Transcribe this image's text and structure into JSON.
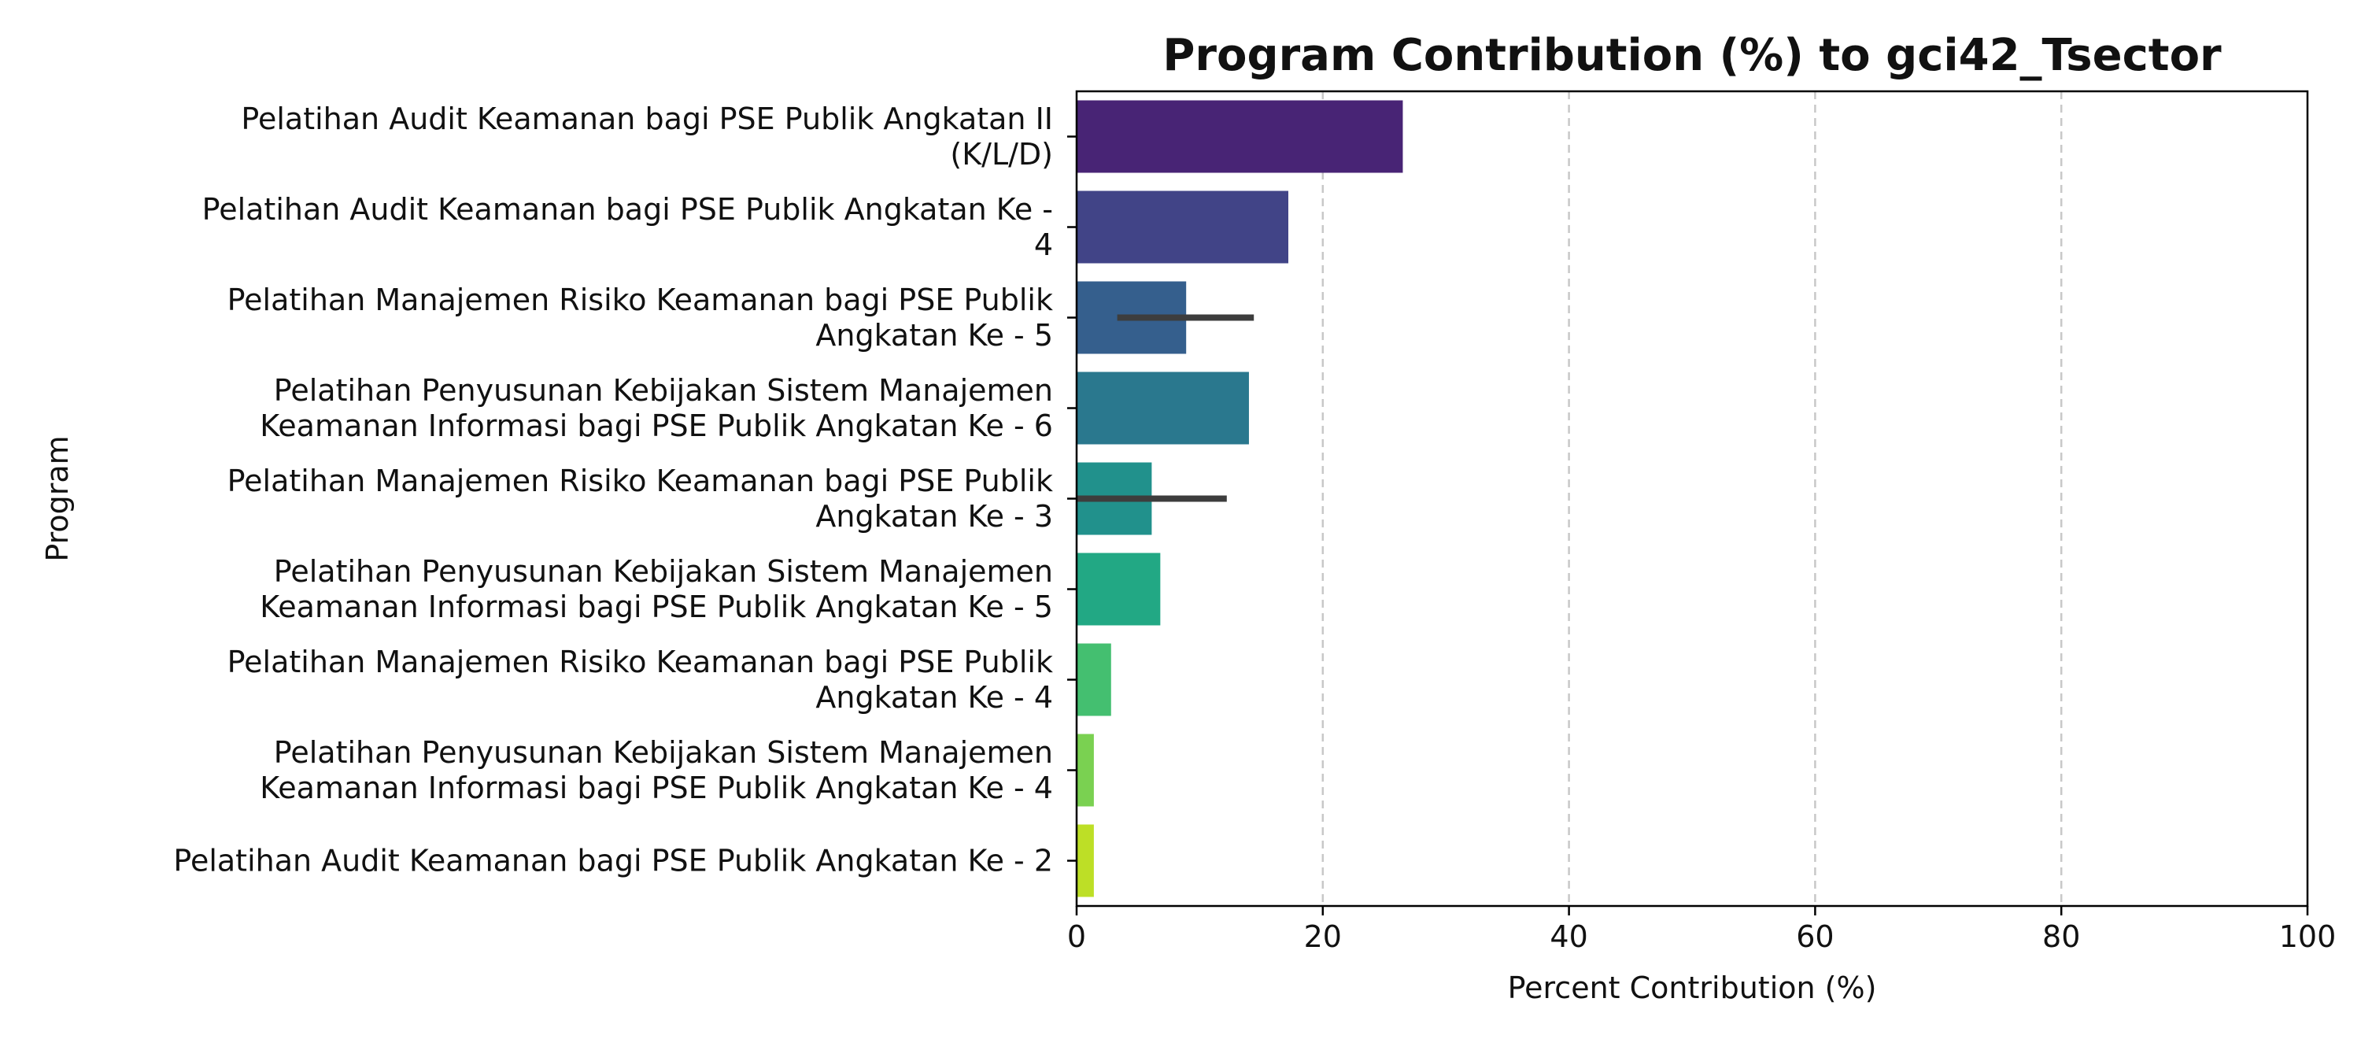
{
  "chart_data": {
    "type": "bar",
    "orientation": "horizontal",
    "title": "Program Contribution (%) to gci42_Tsector",
    "xlabel": "Percent Contribution (%)",
    "ylabel": "Program",
    "xlim": [
      0,
      100
    ],
    "xticks": [
      "0",
      "20",
      "40",
      "60",
      "80",
      "100"
    ],
    "grid": "x-axis dashed",
    "categories": [
      [
        "Pelatihan Audit Keamanan bagi PSE Publik Angkatan II",
        "(K/L/D)"
      ],
      [
        "Pelatihan Audit Keamanan bagi PSE Publik Angkatan Ke -",
        "4"
      ],
      [
        "Pelatihan Manajemen Risiko Keamanan bagi PSE Publik",
        "Angkatan Ke - 5"
      ],
      [
        "Pelatihan Penyusunan Kebijakan Sistem Manajemen",
        "Keamanan Informasi bagi PSE Publik Angkatan Ke - 6"
      ],
      [
        "Pelatihan Manajemen Risiko Keamanan bagi PSE Publik",
        "Angkatan Ke - 3"
      ],
      [
        "Pelatihan Penyusunan Kebijakan Sistem Manajemen",
        "Keamanan Informasi bagi PSE Publik Angkatan Ke - 5"
      ],
      [
        "Pelatihan Manajemen Risiko Keamanan bagi PSE Publik",
        "Angkatan Ke - 4"
      ],
      [
        "Pelatihan Penyusunan Kebijakan Sistem Manajemen",
        "Keamanan Informasi bagi PSE Publik Angkatan Ke - 4"
      ],
      [
        "Pelatihan Audit Keamanan bagi PSE Publik Angkatan Ke - 2"
      ]
    ],
    "values": [
      26.5,
      17.2,
      8.9,
      14.0,
      6.1,
      6.8,
      2.8,
      1.4,
      1.4
    ],
    "error_bars": [
      null,
      null,
      [
        3.3,
        14.4
      ],
      null,
      [
        0.0,
        12.2
      ],
      null,
      null,
      null,
      null
    ],
    "colors": [
      "#482475",
      "#414487",
      "#355f8d",
      "#2a788e",
      "#21918c",
      "#22a884",
      "#44bf70",
      "#7ad151",
      "#bddf26"
    ]
  }
}
